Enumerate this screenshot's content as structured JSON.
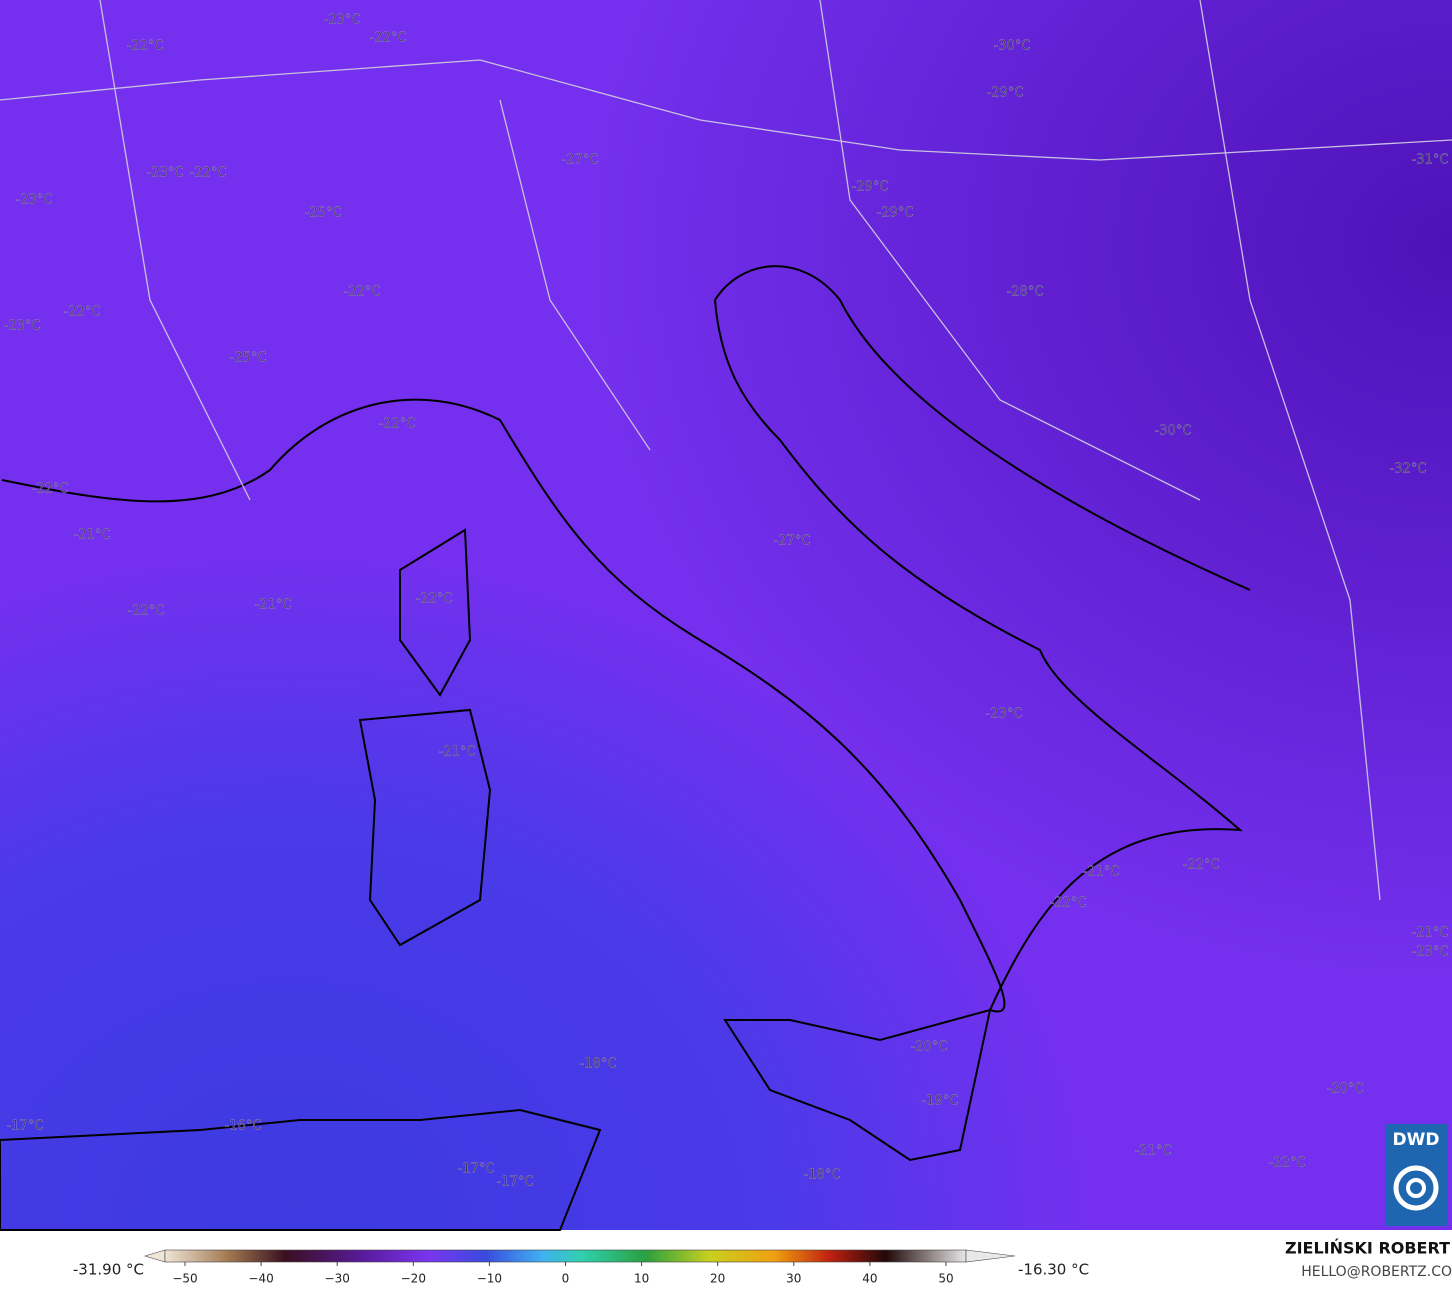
{
  "map": {
    "labels": [
      "-23°C",
      "-22°C",
      "-22°C",
      "-30°C",
      "-29°C",
      "-27°C",
      "-23°C",
      "-22°C",
      "-31°C",
      "-23°C",
      "-29°C",
      "-25°C",
      "-29°C",
      "-22°C",
      "-28°C",
      "-23°C",
      "-22°C",
      "-25°C",
      "-22°C",
      "-30°C",
      "-32°C",
      "-22°C",
      "-21°C",
      "-27°C",
      "-22°C",
      "-21°C",
      "-22°C",
      "-23°C",
      "-21°C",
      "-21°C",
      "-22°C",
      "-22°C",
      "-21°C",
      "-23°C",
      "-20°C",
      "-18°C",
      "-19°C",
      "-20°C",
      "-17°C",
      "-16°C",
      "-21°C",
      "-22°C",
      "-17°C",
      "-17°C",
      "-18°C"
    ]
  },
  "colorbar": {
    "min_label": "-31.90 °C",
    "max_label": "-16.30 °C",
    "xlim": [
      -50,
      50
    ],
    "ticks": [
      {
        "value": -50,
        "label": "−50"
      },
      {
        "value": -40,
        "label": "−40"
      },
      {
        "value": -30,
        "label": "−30"
      },
      {
        "value": -20,
        "label": "−20"
      },
      {
        "value": -10,
        "label": "−10"
      },
      0,
      10,
      20,
      30,
      40,
      50
    ]
  },
  "credits": {
    "author": "ZIELIŃSKI ROBERT",
    "email": "HELLO@ROBERTZ.CO",
    "logo": "DWD"
  }
}
